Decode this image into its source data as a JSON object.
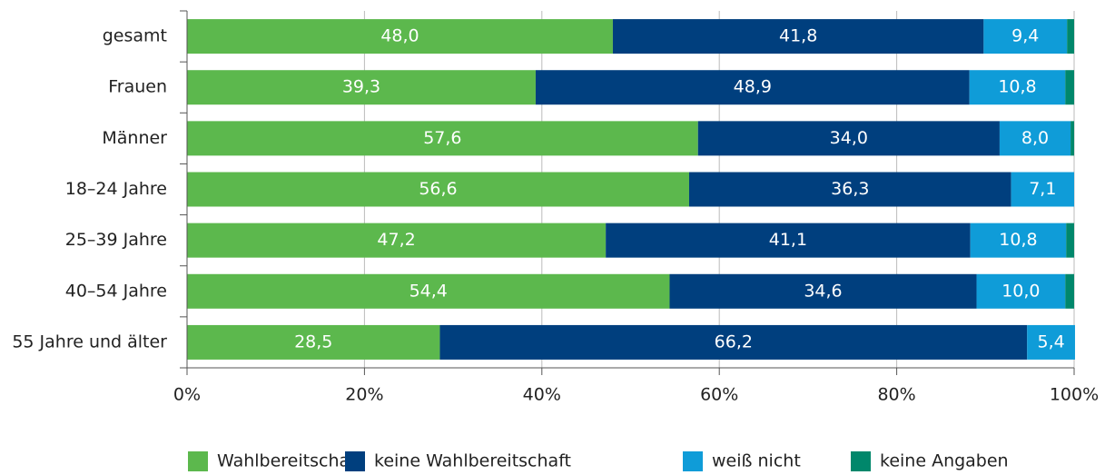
{
  "chart_data": {
    "type": "stacked-barh",
    "categories": [
      "gesamt",
      "Frauen",
      "Männer",
      "18–24 Jahre",
      "25–39 Jahre",
      "40–54 Jahre",
      "55 Jahre und älter"
    ],
    "series": [
      {
        "name": "Wahlbereitschaft",
        "color": "#5cb84d",
        "values": [
          48.0,
          39.3,
          57.6,
          56.6,
          47.2,
          54.4,
          28.5
        ],
        "value_labels": [
          "48,0",
          "39,3",
          "57,6",
          "56,6",
          "47,2",
          "54,4",
          "28,5"
        ]
      },
      {
        "name": "keine Wahlbereitschaft",
        "color": "#003f7e",
        "values": [
          41.8,
          48.9,
          34.0,
          36.3,
          41.1,
          34.6,
          66.2
        ],
        "value_labels": [
          "41,8",
          "48,9",
          "34,0",
          "36,3",
          "41,1",
          "34,6",
          "66,2"
        ]
      },
      {
        "name": "weiß nicht",
        "color": "#0f9cd8",
        "values": [
          9.4,
          10.8,
          8.0,
          7.1,
          10.8,
          10.0,
          5.4
        ],
        "value_labels": [
          "9,4",
          "10,8",
          "8,0",
          "7,1",
          "10,8",
          "10,0",
          "5,4"
        ]
      },
      {
        "name": "keine Angaben",
        "color": "#00876b",
        "values": [
          0.8,
          1.0,
          0.4,
          0,
          0.9,
          1.0,
          0
        ]
      }
    ],
    "xlim": [
      0,
      100
    ],
    "xticks": [
      {
        "value": 0,
        "label": "0%"
      },
      {
        "value": 20,
        "label": "20%"
      },
      {
        "value": 40,
        "label": "40%"
      },
      {
        "value": 60,
        "label": "60%"
      },
      {
        "value": 80,
        "label": "80%"
      },
      {
        "value": 100,
        "label": "100%"
      }
    ],
    "grid": true,
    "legend": "bottom"
  }
}
